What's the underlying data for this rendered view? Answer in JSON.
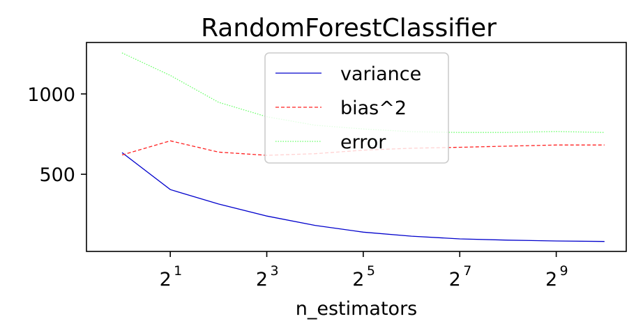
{
  "chart_data": {
    "type": "line",
    "title": "RandomForestClassifier",
    "xlabel": "n_estimators",
    "ylabel": "",
    "x_scale": "log2",
    "x": [
      1,
      2,
      4,
      8,
      16,
      32,
      64,
      128,
      256,
      512,
      1024
    ],
    "xlim": [
      0.6,
      1400
    ],
    "ylim": [
      20,
      1320
    ],
    "x_ticks": [
      {
        "value": 2,
        "base": "2",
        "exp": "1"
      },
      {
        "value": 8,
        "base": "2",
        "exp": "3"
      },
      {
        "value": 32,
        "base": "2",
        "exp": "5"
      },
      {
        "value": 128,
        "base": "2",
        "exp": "7"
      },
      {
        "value": 512,
        "base": "2",
        "exp": "9"
      }
    ],
    "y_ticks": [
      {
        "value": 500,
        "label": "500"
      },
      {
        "value": 1000,
        "label": "1000"
      }
    ],
    "grid": false,
    "legend_position": "top-center",
    "series": [
      {
        "name": "variance",
        "color": "#0000cc",
        "dash": "solid",
        "values": [
          635,
          405,
          315,
          240,
          182,
          140,
          115,
          98,
          90,
          85,
          82
        ]
      },
      {
        "name": "bias^2",
        "color": "#ff2020",
        "dash": "dashed",
        "values": [
          620,
          708,
          638,
          618,
          628,
          650,
          662,
          668,
          675,
          682,
          682
        ]
      },
      {
        "name": "error",
        "color": "#66ff66",
        "dash": "dotted",
        "values": [
          1255,
          1115,
          948,
          858,
          805,
          782,
          765,
          760,
          760,
          766,
          760
        ]
      }
    ]
  }
}
